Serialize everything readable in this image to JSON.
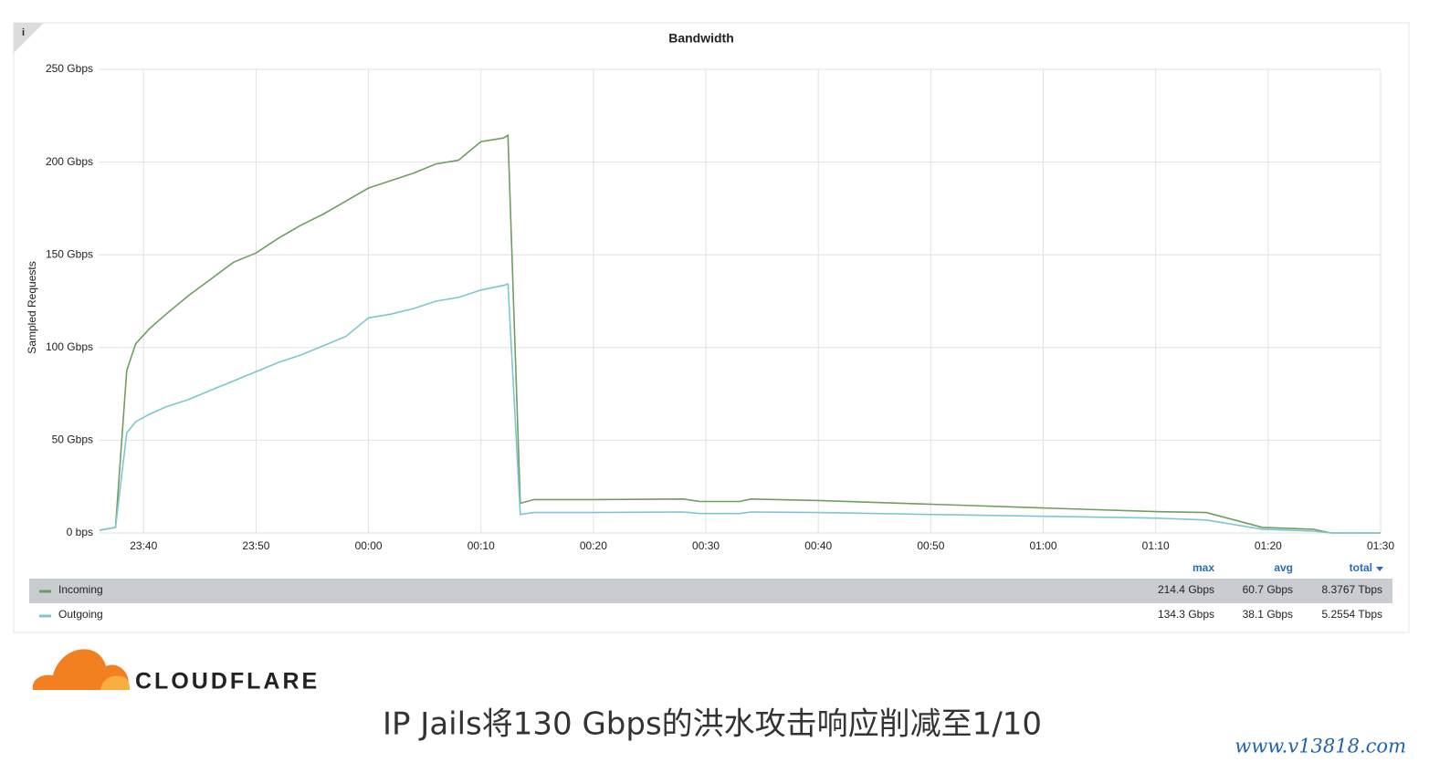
{
  "chart_data": {
    "type": "line",
    "title": "Bandwidth",
    "info_icon": "i",
    "y_label": "Sampled Requests",
    "x": [
      -23.9,
      -22.5,
      -21.5,
      -20.7,
      -19.5,
      -18,
      -16,
      -14,
      -12,
      -10,
      -8,
      -6,
      -4,
      -2,
      0,
      2,
      4,
      6,
      8,
      10,
      12,
      12.4,
      13.5,
      14.7,
      20,
      28,
      29.5,
      33,
      34,
      40,
      50,
      60,
      70,
      74.5,
      79.5,
      84,
      85.6,
      90
    ],
    "series": [
      {
        "name": "Incoming",
        "color": "#6f9e60",
        "stats": [
          "214.4 Gbps",
          "60.7 Gbps",
          "8.3767 Tbps"
        ],
        "values": [
          1.5,
          3,
          87.6,
          102,
          110,
          118,
          128,
          137,
          146,
          151,
          159,
          166,
          172,
          179,
          186,
          190,
          194,
          199,
          201,
          211,
          213,
          214.4,
          16,
          18,
          18,
          18.3,
          17,
          17,
          18.3,
          17.5,
          15.5,
          13.5,
          11.5,
          11,
          3,
          2,
          0,
          0
        ]
      },
      {
        "name": "Outgoing",
        "color": "#7cc7cf",
        "stats": [
          "134.3 Gbps",
          "38.1 Gbps",
          "5.2554 Tbps"
        ],
        "values": [
          1.5,
          3,
          54,
          60,
          64,
          68,
          72,
          77,
          82,
          87,
          92,
          96,
          101,
          106,
          116,
          118,
          121,
          125,
          127,
          131,
          133.5,
          134.3,
          10,
          11,
          11,
          11.3,
          10.5,
          10.5,
          11.3,
          11,
          10,
          9,
          8,
          7,
          2,
          1,
          0,
          0
        ]
      }
    ],
    "stats_columns": [
      "max",
      "avg",
      "total"
    ],
    "xlim": [
      -24,
      90
    ],
    "xticks": [
      {
        "value": -20,
        "label": "23:40"
      },
      {
        "value": -10,
        "label": "23:50"
      },
      {
        "value": 0,
        "label": "00:00"
      },
      {
        "value": 10,
        "label": "00:10"
      },
      {
        "value": 20,
        "label": "00:20"
      },
      {
        "value": 30,
        "label": "00:30"
      },
      {
        "value": 40,
        "label": "00:40"
      },
      {
        "value": 50,
        "label": "00:50"
      },
      {
        "value": 60,
        "label": "01:00"
      },
      {
        "value": 70,
        "label": "01:10"
      },
      {
        "value": 80,
        "label": "01:20"
      },
      {
        "value": 90,
        "label": "01:30"
      }
    ],
    "ylim": [
      0,
      250
    ],
    "yticks": [
      {
        "value": 0,
        "label": "0 bps"
      },
      {
        "value": 50,
        "label": "50 Gbps"
      },
      {
        "value": 100,
        "label": "100 Gbps"
      },
      {
        "value": 150,
        "label": "150 Gbps"
      },
      {
        "value": 200,
        "label": "200 Gbps"
      },
      {
        "value": 250,
        "label": "250 Gbps"
      }
    ],
    "grid": true
  },
  "logo": "CLOUDFLARE",
  "caption": "IP Jails将130 Gbps的洪水攻击响应削减至1/10",
  "watermark": "www.v13818.com"
}
